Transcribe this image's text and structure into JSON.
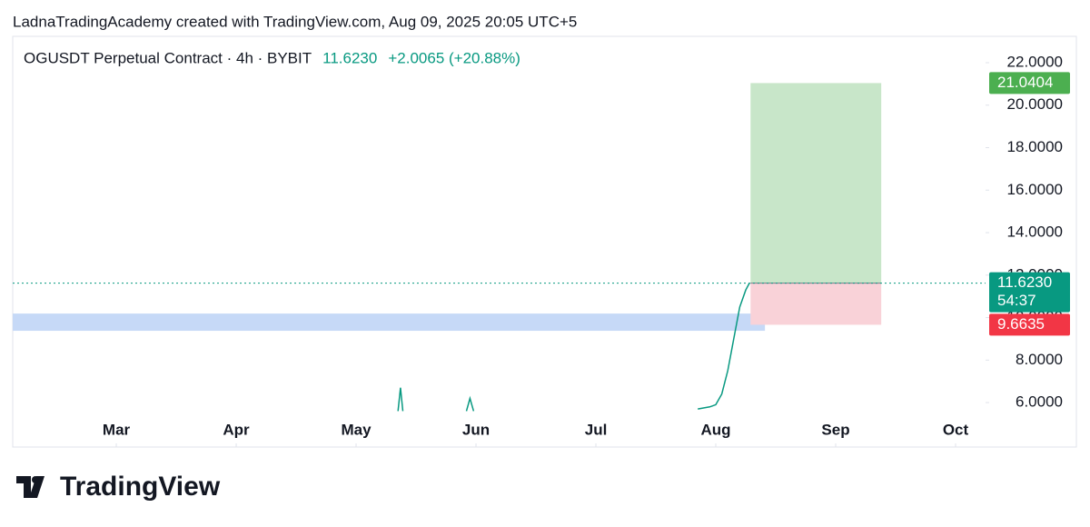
{
  "header": "LadnaTradingAcademy created with TradingView.com, Aug 09, 2025 20:05 UTC+5",
  "logo": "TradingView",
  "chart_data": {
    "type": "line",
    "symbol": "OGUSDT Perpetual Contract · 4h · BYBIT",
    "last_price": {
      "value": 11.623,
      "label": "11.6230"
    },
    "change": "+2.0065 (+20.88%)",
    "countdown": "54:37",
    "color": "#089981",
    "xlim": [
      -0.864,
      7.25
    ],
    "xticks": [
      {
        "value": 0,
        "label": "Mar"
      },
      {
        "value": 1,
        "label": "Apr"
      },
      {
        "value": 2,
        "label": "May"
      },
      {
        "value": 3,
        "label": "Jun"
      },
      {
        "value": 4,
        "label": "Jul"
      },
      {
        "value": 5,
        "label": "Aug"
      },
      {
        "value": 6,
        "label": "Sep"
      },
      {
        "value": 7,
        "label": "Oct"
      }
    ],
    "ylim": [
      5.49,
      23.24
    ],
    "yticks": [
      {
        "value": 6,
        "label": "6.0000"
      },
      {
        "value": 8,
        "label": "8.0000"
      },
      {
        "value": 10,
        "label": "10.0000"
      },
      {
        "value": 12,
        "label": "12.0000"
      },
      {
        "value": 14,
        "label": "14.0000"
      },
      {
        "value": 16,
        "label": "16.0000"
      },
      {
        "value": 18,
        "label": "18.0000"
      },
      {
        "value": 20,
        "label": "20.0000"
      },
      {
        "value": 22,
        "label": "22.0000"
      }
    ],
    "series": [
      {
        "color": "#089981",
        "x": [
          2.35,
          2.37,
          2.39,
          null,
          2.92,
          2.95,
          2.98,
          null,
          4.85,
          4.95,
          5.0,
          5.05,
          5.1,
          5.15,
          5.2,
          5.25,
          5.28
        ],
        "values": [
          5.6,
          6.7,
          5.6,
          null,
          5.6,
          6.2,
          5.6,
          null,
          5.7,
          5.8,
          5.9,
          6.4,
          7.5,
          9.0,
          10.5,
          11.3,
          11.623
        ]
      }
    ],
    "position": {
      "x": [
        5.29,
        6.38
      ],
      "entry": {
        "value": 11.623,
        "label": "11.6230"
      },
      "target": 21.0404,
      "stop": 9.6635,
      "profit_color": "#c8e6c9",
      "loss_color": "#f9d2d8",
      "target_color": "#4caf50",
      "stop_color": "#f23645"
    },
    "zone": {
      "x": [
        -0.864,
        5.41
      ],
      "y": [
        9.38,
        10.19
      ],
      "color": "#c6d9f7"
    }
  }
}
